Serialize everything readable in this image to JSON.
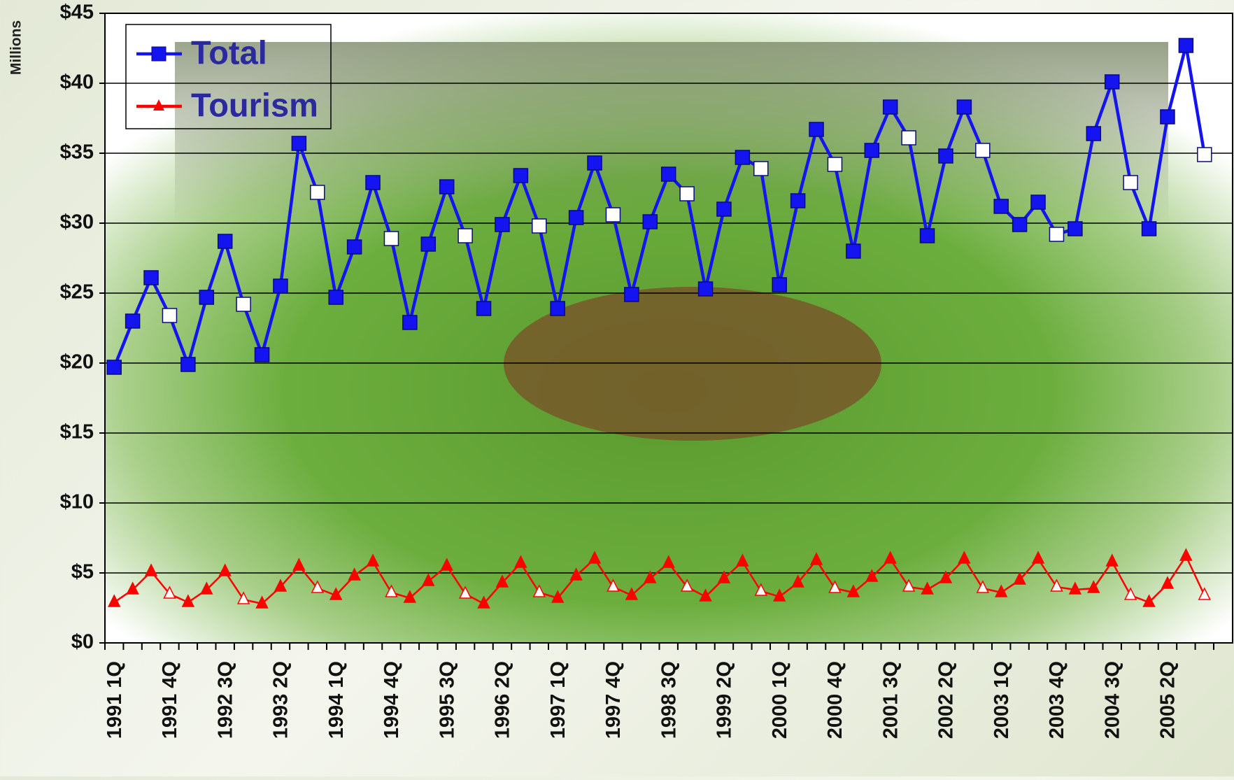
{
  "chart_data": {
    "type": "line",
    "y_label": "Millions",
    "categories": [
      "1991 1Q",
      null,
      null,
      "1991 4Q",
      null,
      null,
      "1992 3Q",
      null,
      null,
      "1993 2Q",
      null,
      null,
      "1994 1Q",
      null,
      null,
      "1994 4Q",
      null,
      null,
      "1995 3Q",
      null,
      null,
      "1996 2Q",
      null,
      null,
      "1997 1Q",
      null,
      null,
      "1997 4Q",
      null,
      null,
      "1998 3Q",
      null,
      null,
      "1999 2Q",
      null,
      null,
      "2000 1Q",
      null,
      null,
      "2000 4Q",
      null,
      null,
      "2001 3Q",
      null,
      null,
      "2002 2Q",
      null,
      null,
      "2003 1Q",
      null,
      null,
      "2003 4Q",
      null,
      null,
      "2004 3Q",
      null,
      null,
      "2005 2Q",
      null,
      null
    ],
    "series": [
      {
        "name": "Total",
        "color": "#1414f0",
        "values": [
          19.7,
          23.0,
          26.1,
          23.4,
          19.9,
          24.7,
          28.7,
          24.2,
          20.6,
          25.5,
          35.7,
          32.2,
          24.7,
          28.3,
          32.9,
          28.9,
          22.9,
          28.5,
          32.6,
          29.1,
          23.9,
          29.9,
          33.4,
          29.8,
          23.9,
          30.4,
          34.3,
          30.6,
          24.9,
          30.1,
          33.5,
          32.1,
          25.3,
          31.0,
          34.7,
          33.9,
          25.6,
          31.6,
          36.7,
          34.2,
          28.0,
          35.2,
          38.3,
          36.1,
          29.1,
          34.8,
          38.3,
          35.2,
          31.2,
          29.9,
          31.5,
          29.2,
          29.6,
          36.4,
          40.1,
          32.9,
          29.6,
          37.6,
          42.7,
          34.9
        ]
      },
      {
        "name": "Tourism",
        "color": "#ff0000",
        "values": [
          2.9,
          3.8,
          5.1,
          3.5,
          2.9,
          3.8,
          5.1,
          3.1,
          2.8,
          4.0,
          5.5,
          3.9,
          3.4,
          4.8,
          5.8,
          3.6,
          3.2,
          4.4,
          5.5,
          3.5,
          2.8,
          4.3,
          5.7,
          3.6,
          3.2,
          4.8,
          6.0,
          4.0,
          3.4,
          4.6,
          5.7,
          4.0,
          3.3,
          4.6,
          5.8,
          3.7,
          3.3,
          4.3,
          5.9,
          3.9,
          3.6,
          4.7,
          6.0,
          4.0,
          3.8,
          4.6,
          6.0,
          3.9,
          3.6,
          4.5,
          6.0,
          4.0,
          3.8,
          3.9,
          5.8,
          3.4,
          2.9,
          4.2,
          6.2,
          3.4
        ]
      }
    ],
    "ylim": [
      0,
      45
    ],
    "yticks": [
      {
        "value": 0,
        "label": "$0"
      },
      {
        "value": 5,
        "label": "$5"
      },
      {
        "value": 10,
        "label": "$10"
      },
      {
        "value": 15,
        "label": "$15"
      },
      {
        "value": 20,
        "label": "$20"
      },
      {
        "value": 25,
        "label": "$25"
      },
      {
        "value": 30,
        "label": "$30"
      },
      {
        "value": 35,
        "label": "$35"
      },
      {
        "value": 40,
        "label": "$40"
      },
      {
        "value": 45,
        "label": "$45"
      }
    ],
    "grid": true,
    "legend": "upper left"
  }
}
